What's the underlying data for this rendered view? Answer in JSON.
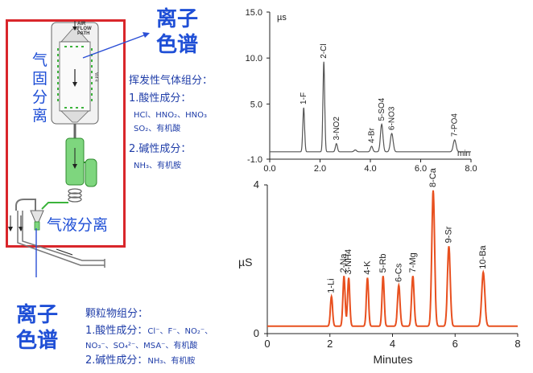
{
  "apparatus": {
    "flow_label_lines": [
      "AIR",
      "FLOW",
      "PATH"
    ],
    "vertical_mark": "EPA",
    "gas_solid_label": [
      "气",
      "固",
      "分",
      "离"
    ],
    "gas_liquid_label": "气液分离"
  },
  "ic_top": [
    "离子",
    "色谱"
  ],
  "ic_bottom": [
    "离子",
    "色谱"
  ],
  "volatile": {
    "title": "挥发性气体组分：",
    "acid_title": "1.酸性成分：",
    "acid_line1": "HCl、HNO₂、HNO₃",
    "acid_line2": "SO₂、有机酸",
    "base_title": "2.碱性成分：",
    "base_line1": "NH₃、有机胺"
  },
  "particulate": {
    "title": "颗粒物组分：",
    "acid_title": "1.酸性成分：",
    "acid_line1": "Cl⁻、F⁻、NO₂⁻、",
    "acid_line2": "NO₃⁻、SO₄²⁻、MSA⁻、有机酸",
    "base_title": "2.碱性成分：",
    "base_line1": "NH₃、有机胺"
  },
  "chart_data": [
    {
      "type": "line",
      "title": "",
      "xlabel": "",
      "ylabel": "",
      "y_unit": "µs",
      "x_unit": "min",
      "xlim": [
        0,
        8
      ],
      "ylim": [
        -1,
        15
      ],
      "x_ticks": [
        "0.0",
        "2.0",
        "4.0",
        "6.0",
        "8.0"
      ],
      "y_ticks": [
        "15.0",
        "10.0",
        "5.0",
        "-1.0"
      ],
      "line_color": "#555555",
      "baseline": -0.2,
      "peaks": [
        {
          "label": "1-F",
          "x": 1.35,
          "y": 4.8,
          "w": 0.035
        },
        {
          "label": "2-Cl",
          "x": 2.15,
          "y": 9.8,
          "w": 0.035
        },
        {
          "label": "3-NO2",
          "x": 2.65,
          "y": 0.9,
          "w": 0.04
        },
        {
          "label": "",
          "x": 3.4,
          "y": 0.2,
          "w": 0.05
        },
        {
          "label": "4-Br",
          "x": 4.05,
          "y": 0.6,
          "w": 0.045
        },
        {
          "label": "5-SO4",
          "x": 4.45,
          "y": 3.0,
          "w": 0.05
        },
        {
          "label": "6-NO3",
          "x": 4.85,
          "y": 2.0,
          "w": 0.055
        },
        {
          "label": "7-PO4",
          "x": 7.35,
          "y": 1.3,
          "w": 0.055
        }
      ]
    },
    {
      "type": "line",
      "title": "",
      "xlabel": "Minutes",
      "ylabel": "µS",
      "xlim": [
        0,
        8
      ],
      "ylim": [
        0,
        4
      ],
      "x_ticks": [
        "0",
        "2",
        "4",
        "6",
        "8"
      ],
      "y_ticks": [
        "4",
        "0"
      ],
      "line_color": "#e8501f",
      "baseline": 0.2,
      "peaks": [
        {
          "label": "1-Li",
          "x": 2.05,
          "y": 0.8,
          "w": 0.035
        },
        {
          "label": "2-Na",
          "x": 2.45,
          "y": 1.35,
          "w": 0.035
        },
        {
          "label": "3-NH4",
          "x": 2.6,
          "y": 1.3,
          "w": 0.035
        },
        {
          "label": "4-K",
          "x": 3.2,
          "y": 1.3,
          "w": 0.035
        },
        {
          "label": "5-Rb",
          "x": 3.7,
          "y": 1.35,
          "w": 0.035
        },
        {
          "label": "6-Cs",
          "x": 4.2,
          "y": 1.1,
          "w": 0.04
        },
        {
          "label": "7-Mg",
          "x": 4.65,
          "y": 1.35,
          "w": 0.04
        },
        {
          "label": "8-Ca",
          "x": 5.3,
          "y": 3.65,
          "w": 0.045
        },
        {
          "label": "9-Sr",
          "x": 5.8,
          "y": 2.15,
          "w": 0.045
        },
        {
          "label": "10-Ba",
          "x": 6.9,
          "y": 1.45,
          "w": 0.05
        }
      ]
    }
  ]
}
